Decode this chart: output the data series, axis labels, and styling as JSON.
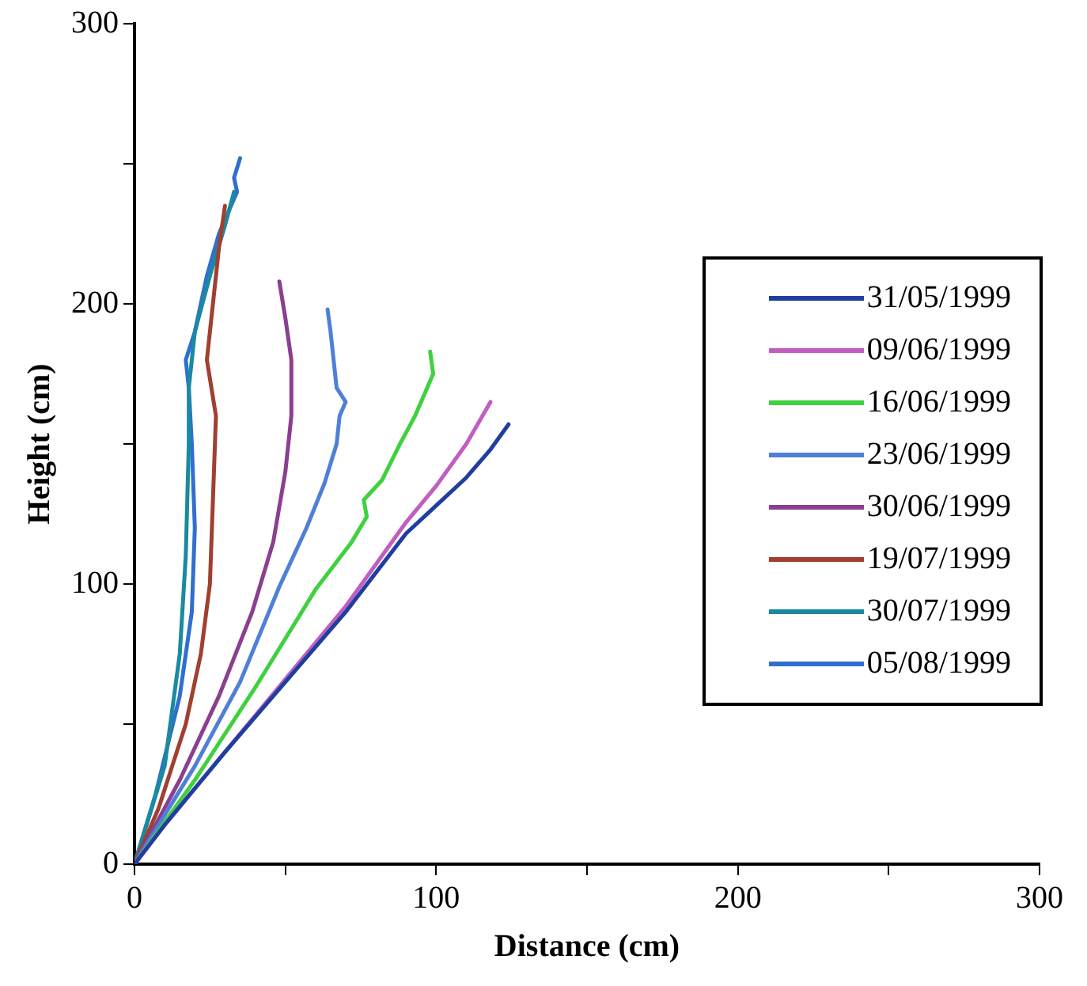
{
  "chart_data": {
    "type": "line",
    "xlabel": "Distance (cm)",
    "ylabel": "Height (cm)",
    "xlim": [
      0,
      300
    ],
    "ylim": [
      0,
      300
    ],
    "xticks": [
      0,
      {
        "value": 50,
        "label": null
      },
      100,
      {
        "value": 150,
        "label": null
      },
      200,
      {
        "value": 250,
        "label": null
      },
      300
    ],
    "yticks": [
      0,
      {
        "value": 50,
        "label": null
      },
      100,
      {
        "value": 150,
        "label": null
      },
      200,
      {
        "value": 250,
        "label": null
      },
      300
    ],
    "grid": false,
    "legend": "right",
    "marker": "none",
    "line_style": "solid",
    "series": [
      {
        "name": "31/05/1999",
        "color": "#1f3f9f",
        "x": [
          0,
          10,
          30,
          50,
          70,
          90,
          100,
          110,
          118,
          124
        ],
        "values": [
          0,
          14,
          40,
          65,
          90,
          118,
          128,
          138,
          148,
          157
        ]
      },
      {
        "name": "09/06/1999",
        "color": "#c05fc0",
        "x": [
          0,
          10,
          30,
          50,
          70,
          90,
          100,
          110,
          118
        ],
        "values": [
          0,
          14,
          40,
          66,
          92,
          122,
          135,
          150,
          165
        ]
      },
      {
        "name": "16/06/1999",
        "color": "#40d040",
        "x": [
          0,
          20,
          40,
          60,
          72,
          77,
          76,
          82,
          88,
          93,
          97,
          99,
          98
        ],
        "values": [
          0,
          30,
          63,
          98,
          115,
          124,
          130,
          137,
          150,
          160,
          170,
          175,
          183
        ]
      },
      {
        "name": "23/06/1999",
        "color": "#4f80d8",
        "x": [
          0,
          20,
          35,
          48,
          57,
          63,
          67,
          68,
          70,
          67,
          66,
          65,
          64
        ],
        "values": [
          0,
          35,
          65,
          99,
          120,
          136,
          150,
          160,
          165,
          170,
          180,
          190,
          198
        ]
      },
      {
        "name": "30/06/1999",
        "color": "#8a3f90",
        "x": [
          0,
          15,
          28,
          39,
          46,
          50,
          52,
          52,
          50,
          48
        ],
        "values": [
          0,
          30,
          60,
          90,
          115,
          140,
          160,
          180,
          195,
          208
        ]
      },
      {
        "name": "19/07/1999",
        "color": "#a04030",
        "x": [
          0,
          8,
          17,
          22,
          25,
          26,
          27,
          24,
          26,
          28,
          30
        ],
        "values": [
          0,
          20,
          50,
          75,
          100,
          130,
          160,
          180,
          200,
          220,
          235
        ]
      },
      {
        "name": "30/07/1999",
        "color": "#1a8aa0",
        "x": [
          0,
          10,
          15,
          17,
          18,
          18,
          20,
          25,
          30,
          33
        ],
        "values": [
          0,
          35,
          75,
          110,
          150,
          170,
          190,
          210,
          228,
          240
        ]
      },
      {
        "name": "05/08/1999",
        "color": "#2f6fd0",
        "x": [
          0,
          7,
          15,
          19,
          20,
          19,
          18,
          17,
          20,
          24,
          28,
          32,
          34,
          33,
          35
        ],
        "values": [
          0,
          25,
          60,
          90,
          120,
          150,
          170,
          180,
          190,
          210,
          225,
          235,
          240,
          245,
          252
        ]
      }
    ]
  }
}
